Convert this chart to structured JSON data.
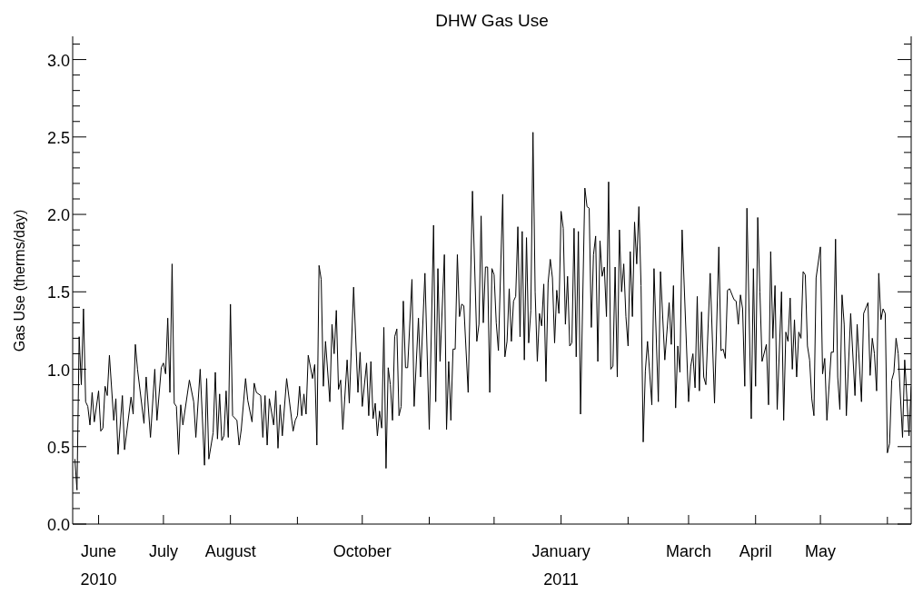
{
  "chart_data": {
    "type": "line",
    "title": "DHW Gas Use",
    "ylabel": "Gas Use (therms/day)",
    "x": [
      "2010-05-21",
      "2010-05-22",
      "2010-05-23",
      "2010-05-24",
      "2010-05-25",
      "2010-05-26",
      "2010-05-27",
      "2010-05-28",
      "2010-05-29",
      "2010-05-30",
      "2010-06-01",
      "2010-06-02",
      "2010-06-03",
      "2010-06-04",
      "2010-06-05",
      "2010-06-06",
      "2010-06-08",
      "2010-06-09",
      "2010-06-10",
      "2010-06-12",
      "2010-06-13",
      "2010-06-16",
      "2010-06-17",
      "2010-06-18",
      "2010-06-19",
      "2010-06-22",
      "2010-06-23",
      "2010-06-25",
      "2010-06-27",
      "2010-06-28",
      "2010-06-30",
      "2010-07-01",
      "2010-07-02",
      "2010-07-03",
      "2010-07-04",
      "2010-07-05",
      "2010-07-06",
      "2010-07-07",
      "2010-07-08",
      "2010-07-09",
      "2010-07-10",
      "2010-07-13",
      "2010-07-15",
      "2010-07-16",
      "2010-07-18",
      "2010-07-20",
      "2010-07-21",
      "2010-07-22",
      "2010-07-24",
      "2010-07-25",
      "2010-07-26",
      "2010-07-27",
      "2010-07-28",
      "2010-07-29",
      "2010-07-30",
      "2010-07-31",
      "2010-08-01",
      "2010-08-02",
      "2010-08-04",
      "2010-08-05",
      "2010-08-06",
      "2010-08-08",
      "2010-08-09",
      "2010-08-11",
      "2010-08-12",
      "2010-08-13",
      "2010-08-15",
      "2010-08-16",
      "2010-08-17",
      "2010-08-18",
      "2010-08-19",
      "2010-08-21",
      "2010-08-22",
      "2010-08-23",
      "2010-08-24",
      "2010-08-25",
      "2010-08-27",
      "2010-08-30",
      "2010-08-31",
      "2010-09-01",
      "2010-09-02",
      "2010-09-03",
      "2010-09-04",
      "2010-09-05",
      "2010-09-06",
      "2010-09-08",
      "2010-09-09",
      "2010-09-10",
      "2010-09-11",
      "2010-09-12",
      "2010-09-13",
      "2010-09-14",
      "2010-09-16",
      "2010-09-17",
      "2010-09-18",
      "2010-09-19",
      "2010-09-20",
      "2010-09-21",
      "2010-09-22",
      "2010-09-24",
      "2010-09-25",
      "2010-09-27",
      "2010-09-29",
      "2010-09-30",
      "2010-10-01",
      "2010-10-03",
      "2010-10-04",
      "2010-10-05",
      "2010-10-06",
      "2010-10-07",
      "2010-10-08",
      "2010-10-09",
      "2010-10-10",
      "2010-10-11",
      "2010-10-12",
      "2010-10-13",
      "2010-10-14",
      "2010-10-15",
      "2010-10-16",
      "2010-10-17",
      "2010-10-18",
      "2010-10-19",
      "2010-10-20",
      "2010-10-21",
      "2010-10-22",
      "2010-10-24",
      "2010-10-25",
      "2010-10-27",
      "2010-10-28",
      "2010-10-30",
      "2010-11-01",
      "2010-11-03",
      "2010-11-04",
      "2010-11-05",
      "2010-11-06",
      "2010-11-08",
      "2010-11-09",
      "2010-11-10",
      "2010-11-11",
      "2010-11-12",
      "2010-11-13",
      "2010-11-14",
      "2010-11-15",
      "2010-11-16",
      "2010-11-17",
      "2010-11-19",
      "2010-11-21",
      "2010-11-23",
      "2010-11-24",
      "2010-11-25",
      "2010-11-26",
      "2010-11-27",
      "2010-11-28",
      "2010-11-29",
      "2010-11-30",
      "2010-12-01",
      "2010-12-02",
      "2010-12-03",
      "2010-12-05",
      "2010-12-06",
      "2010-12-07",
      "2010-12-08",
      "2010-12-09",
      "2010-12-10",
      "2010-12-11",
      "2010-12-12",
      "2010-12-13",
      "2010-12-14",
      "2010-12-15",
      "2010-12-16",
      "2010-12-17",
      "2010-12-18",
      "2010-12-19",
      "2010-12-20",
      "2010-12-21",
      "2010-12-22",
      "2010-12-23",
      "2010-12-24",
      "2010-12-25",
      "2010-12-26",
      "2010-12-27",
      "2010-12-28",
      "2010-12-29",
      "2010-12-30",
      "2010-12-31",
      "2011-01-01",
      "2011-01-02",
      "2011-01-03",
      "2011-01-04",
      "2011-01-05",
      "2011-01-06",
      "2011-01-07",
      "2011-01-08",
      "2011-01-09",
      "2011-01-10",
      "2011-01-12",
      "2011-01-13",
      "2011-01-14",
      "2011-01-15",
      "2011-01-16",
      "2011-01-17",
      "2011-01-18",
      "2011-01-19",
      "2011-01-20",
      "2011-01-21",
      "2011-01-22",
      "2011-01-23",
      "2011-01-24",
      "2011-01-25",
      "2011-01-26",
      "2011-01-27",
      "2011-01-28",
      "2011-01-29",
      "2011-01-30",
      "2011-01-31",
      "2011-02-01",
      "2011-02-02",
      "2011-02-03",
      "2011-02-04",
      "2011-02-05",
      "2011-02-06",
      "2011-02-07",
      "2011-02-08",
      "2011-02-09",
      "2011-02-10",
      "2011-02-12",
      "2011-02-13",
      "2011-02-15",
      "2011-02-16",
      "2011-02-18",
      "2011-02-20",
      "2011-02-21",
      "2011-02-22",
      "2011-02-23",
      "2011-02-24",
      "2011-02-25",
      "2011-02-26",
      "2011-03-01",
      "2011-03-02",
      "2011-03-03",
      "2011-03-04",
      "2011-03-05",
      "2011-03-06",
      "2011-03-07",
      "2011-03-08",
      "2011-03-09",
      "2011-03-11",
      "2011-03-13",
      "2011-03-15",
      "2011-03-16",
      "2011-03-17",
      "2011-03-18",
      "2011-03-19",
      "2011-03-20",
      "2011-03-22",
      "2011-03-23",
      "2011-03-24",
      "2011-03-25",
      "2011-03-26",
      "2011-03-27",
      "2011-03-28",
      "2011-03-30",
      "2011-03-31",
      "2011-04-01",
      "2011-04-02",
      "2011-04-03",
      "2011-04-04",
      "2011-04-06",
      "2011-04-07",
      "2011-04-08",
      "2011-04-09",
      "2011-04-10",
      "2011-04-11",
      "2011-04-13",
      "2011-04-14",
      "2011-04-15",
      "2011-04-16",
      "2011-04-17",
      "2011-04-18",
      "2011-04-19",
      "2011-04-20",
      "2011-04-21",
      "2011-04-22",
      "2011-04-23",
      "2011-04-24",
      "2011-04-25",
      "2011-04-26",
      "2011-04-27",
      "2011-04-28",
      "2011-04-29",
      "2011-05-01",
      "2011-05-02",
      "2011-05-03",
      "2011-05-04",
      "2011-05-06",
      "2011-05-07",
      "2011-05-08",
      "2011-05-09",
      "2011-05-10",
      "2011-05-11",
      "2011-05-12",
      "2011-05-13",
      "2011-05-15",
      "2011-05-17",
      "2011-05-18",
      "2011-05-20",
      "2011-05-21",
      "2011-05-23",
      "2011-05-24",
      "2011-05-25",
      "2011-05-26",
      "2011-05-27",
      "2011-05-28",
      "2011-05-29",
      "2011-05-30",
      "2011-05-31",
      "2011-06-01",
      "2011-06-02",
      "2011-06-03",
      "2011-06-04",
      "2011-06-05",
      "2011-06-06",
      "2011-06-08",
      "2011-06-09",
      "2011-06-11",
      "2011-06-12"
    ],
    "values": [
      0.42,
      0.22,
      1.21,
      0.9,
      1.39,
      0.79,
      0.76,
      0.64,
      0.85,
      0.66,
      0.86,
      0.6,
      0.62,
      0.89,
      0.83,
      1.09,
      0.67,
      0.81,
      0.45,
      0.83,
      0.48,
      0.82,
      0.71,
      1.16,
      1.0,
      0.65,
      0.95,
      0.56,
      1.0,
      0.67,
      1.01,
      1.04,
      0.97,
      1.33,
      0.85,
      1.68,
      0.78,
      0.76,
      0.45,
      0.77,
      0.64,
      0.93,
      0.79,
      0.56,
      1.0,
      0.38,
      0.94,
      0.42,
      0.59,
      0.98,
      0.55,
      0.84,
      0.54,
      0.57,
      0.86,
      0.56,
      1.42,
      0.7,
      0.67,
      0.51,
      0.61,
      0.94,
      0.8,
      0.66,
      0.91,
      0.85,
      0.83,
      0.56,
      0.83,
      0.51,
      0.81,
      0.64,
      0.86,
      0.49,
      0.77,
      0.57,
      0.94,
      0.6,
      0.67,
      0.7,
      0.89,
      0.7,
      0.84,
      0.71,
      1.09,
      0.94,
      1.03,
      0.51,
      1.67,
      1.58,
      0.89,
      1.18,
      0.79,
      1.29,
      1.1,
      1.38,
      0.87,
      0.93,
      0.61,
      1.06,
      0.78,
      1.53,
      0.85,
      1.11,
      0.76,
      1.04,
      0.7,
      1.05,
      0.68,
      0.78,
      0.57,
      0.73,
      0.62,
      1.27,
      0.36,
      1.01,
      0.9,
      0.67,
      1.21,
      1.26,
      0.7,
      0.76,
      1.44,
      1.01,
      1.01,
      1.58,
      0.76,
      1.33,
      0.95,
      1.62,
      0.61,
      1.93,
      0.79,
      1.65,
      1.05,
      1.74,
      0.61,
      1.05,
      0.67,
      1.13,
      1.13,
      1.74,
      1.34,
      1.42,
      1.41,
      0.85,
      2.15,
      1.18,
      1.29,
      1.99,
      1.3,
      1.66,
      1.66,
      0.85,
      1.65,
      1.61,
      1.3,
      1.12,
      2.13,
      1.08,
      1.18,
      1.52,
      1.18,
      1.44,
      1.47,
      1.92,
      1.21,
      1.89,
      1.06,
      1.85,
      1.17,
      1.38,
      2.53,
      1.5,
      1.05,
      1.36,
      1.28,
      1.55,
      0.92,
      1.56,
      1.71,
      1.59,
      1.17,
      1.51,
      1.36,
      2.02,
      1.91,
      1.29,
      1.6,
      1.15,
      1.17,
      1.91,
      1.08,
      1.89,
      0.71,
      2.17,
      2.05,
      2.04,
      1.27,
      1.74,
      1.86,
      1.05,
      1.83,
      1.6,
      1.66,
      1.34,
      2.21,
      1.0,
      1.02,
      1.66,
      0.95,
      1.9,
      1.5,
      1.68,
      1.34,
      1.15,
      1.76,
      1.34,
      1.95,
      1.68,
      2.05,
      1.54,
      0.53,
      0.99,
      1.18,
      0.77,
      1.65,
      0.79,
      1.63,
      1.06,
      1.43,
      1.16,
      1.54,
      0.75,
      1.15,
      0.98,
      1.9,
      0.79,
      1.02,
      1.1,
      0.88,
      1.47,
      0.86,
      1.37,
      0.95,
      0.9,
      1.62,
      0.78,
      1.79,
      1.12,
      1.13,
      1.07,
      1.51,
      1.52,
      1.45,
      1.44,
      1.29,
      1.48,
      1.39,
      0.89,
      2.04,
      0.68,
      1.65,
      0.89,
      1.98,
      1.5,
      1.05,
      1.16,
      0.77,
      1.76,
      1.2,
      1.54,
      0.74,
      1.5,
      0.67,
      1.24,
      1.18,
      1.46,
      1.0,
      1.32,
      0.95,
      1.24,
      1.2,
      1.63,
      1.61,
      1.15,
      1.06,
      0.81,
      0.7,
      1.59,
      1.79,
      0.97,
      1.07,
      0.67,
      1.11,
      1.11,
      1.84,
      0.95,
      0.74,
      1.48,
      1.29,
      0.7,
      1.36,
      0.83,
      1.29,
      0.79,
      1.36,
      1.43,
      0.96,
      1.2,
      1.1,
      0.86,
      1.62,
      1.32,
      1.39,
      1.36,
      0.46,
      0.52,
      0.93,
      0.98,
      1.2,
      1.1,
      0.56,
      1.06,
      0.57,
      0.89
    ],
    "color": "#000000",
    "marker": "none",
    "line_style": "solid",
    "xlim": [
      "2010-05-20",
      "2011-06-12"
    ],
    "xticks": [
      {
        "value": "2010-06-01",
        "label": "June\n2010"
      },
      {
        "value": "2010-07-01",
        "label": "July"
      },
      {
        "value": "2010-08-01",
        "label": "August"
      },
      {
        "value": "2010-09-01",
        "label": null
      },
      {
        "value": "2010-10-01",
        "label": "October"
      },
      {
        "value": "2010-11-01",
        "label": null
      },
      {
        "value": "2010-12-01",
        "label": null
      },
      {
        "value": "2011-01-01",
        "label": "January\n2011"
      },
      {
        "value": "2011-02-01",
        "label": null
      },
      {
        "value": "2011-03-01",
        "label": "March"
      },
      {
        "value": "2011-04-01",
        "label": "April"
      },
      {
        "value": "2011-05-01",
        "label": "May"
      },
      {
        "value": "2011-06-01",
        "label": null
      }
    ],
    "ylim": [
      0,
      3.15
    ],
    "yticks": [
      {
        "value": 0,
        "label": "0.0"
      },
      {
        "value": 0.1,
        "label": null
      },
      {
        "value": 0.2,
        "label": null
      },
      {
        "value": 0.3,
        "label": null
      },
      {
        "value": 0.4,
        "label": null
      },
      {
        "value": 0.5,
        "label": "0.5"
      },
      {
        "value": 0.6,
        "label": null
      },
      {
        "value": 0.7,
        "label": null
      },
      {
        "value": 0.8,
        "label": null
      },
      {
        "value": 0.9,
        "label": null
      },
      {
        "value": 1,
        "label": "1.0"
      },
      {
        "value": 1.1,
        "label": null
      },
      {
        "value": 1.2,
        "label": null
      },
      {
        "value": 1.3,
        "label": null
      },
      {
        "value": 1.4,
        "label": null
      },
      {
        "value": 1.5,
        "label": "1.5"
      },
      {
        "value": 1.6,
        "label": null
      },
      {
        "value": 1.7,
        "label": null
      },
      {
        "value": 1.8,
        "label": null
      },
      {
        "value": 1.9,
        "label": null
      },
      {
        "value": 2,
        "label": "2.0"
      },
      {
        "value": 2.1,
        "label": null
      },
      {
        "value": 2.2,
        "label": null
      },
      {
        "value": 2.3,
        "label": null
      },
      {
        "value": 2.4,
        "label": null
      },
      {
        "value": 2.5,
        "label": "2.5"
      },
      {
        "value": 2.6,
        "label": null
      },
      {
        "value": 2.7,
        "label": null
      },
      {
        "value": 2.8,
        "label": null
      },
      {
        "value": 2.9,
        "label": null
      },
      {
        "value": 3,
        "label": "3.0"
      },
      {
        "value": 3.1,
        "label": null
      }
    ]
  }
}
